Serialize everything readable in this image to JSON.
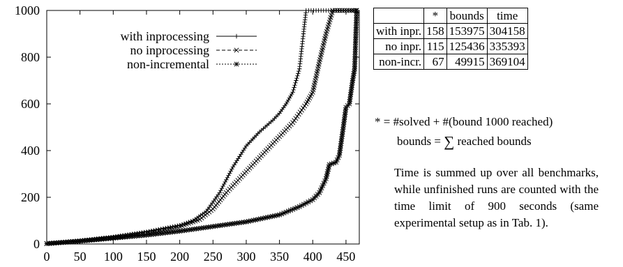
{
  "chart_data": {
    "type": "line",
    "title": "",
    "xlabel": "",
    "ylabel": "",
    "xlim": [
      0,
      470
    ],
    "ylim": [
      0,
      1000
    ],
    "xticks": [
      "0",
      "50",
      "100",
      "150",
      "200",
      "250",
      "300",
      "350",
      "400",
      "450"
    ],
    "yticks": [
      "0",
      "200",
      "400",
      "600",
      "800",
      "1000"
    ],
    "legend_position": "top-left",
    "series": [
      {
        "name": "with inprocessing",
        "marker": "+",
        "dash": "none",
        "points": [
          [
            0,
            2
          ],
          [
            50,
            14
          ],
          [
            100,
            30
          ],
          [
            150,
            52
          ],
          [
            200,
            80
          ],
          [
            220,
            100
          ],
          [
            240,
            140
          ],
          [
            260,
            220
          ],
          [
            280,
            330
          ],
          [
            300,
            420
          ],
          [
            320,
            480
          ],
          [
            340,
            530
          ],
          [
            350,
            560
          ],
          [
            360,
            600
          ],
          [
            370,
            650
          ],
          [
            380,
            750
          ],
          [
            386,
            900
          ],
          [
            390,
            1000
          ],
          [
            465,
            1000
          ]
        ]
      },
      {
        "name": "no inprocessing",
        "marker": "x",
        "dash": "dashed",
        "points": [
          [
            0,
            2
          ],
          [
            50,
            13
          ],
          [
            100,
            28
          ],
          [
            150,
            48
          ],
          [
            200,
            75
          ],
          [
            230,
            105
          ],
          [
            250,
            150
          ],
          [
            270,
            220
          ],
          [
            290,
            280
          ],
          [
            310,
            340
          ],
          [
            330,
            400
          ],
          [
            350,
            460
          ],
          [
            370,
            520
          ],
          [
            390,
            600
          ],
          [
            400,
            650
          ],
          [
            410,
            780
          ],
          [
            420,
            900
          ],
          [
            425,
            950
          ],
          [
            430,
            1000
          ],
          [
            465,
            1000
          ]
        ]
      },
      {
        "name": "non-incremental",
        "marker": "*",
        "dash": "dotted",
        "points": [
          [
            0,
            1
          ],
          [
            50,
            12
          ],
          [
            100,
            25
          ],
          [
            150,
            38
          ],
          [
            200,
            55
          ],
          [
            250,
            75
          ],
          [
            300,
            95
          ],
          [
            350,
            125
          ],
          [
            380,
            160
          ],
          [
            400,
            190
          ],
          [
            410,
            220
          ],
          [
            420,
            280
          ],
          [
            425,
            340
          ],
          [
            435,
            350
          ],
          [
            440,
            380
          ],
          [
            445,
            480
          ],
          [
            450,
            585
          ],
          [
            455,
            600
          ],
          [
            460,
            700
          ],
          [
            463,
            750
          ],
          [
            466,
            1000
          ]
        ]
      }
    ]
  },
  "table": {
    "header": [
      "",
      "*",
      "bounds",
      "time"
    ],
    "rows": [
      {
        "label": "with inpr.",
        "solved": "158",
        "bounds": "153975",
        "time": "304158"
      },
      {
        "label": "no inpr.",
        "solved": "115",
        "bounds": "125436",
        "time": "335393"
      },
      {
        "label": "non-incr.",
        "solved": "67",
        "bounds": "49915",
        "time": "369104"
      }
    ]
  },
  "notes": {
    "solved_def": "* = #solved + #(bound 1000 reached)",
    "bounds_left": "bounds =",
    "bounds_sigma": "∑",
    "bounds_right": "reached bounds",
    "paragraph": "Time is summed up over all benchmarks, while unfinished runs are counted with the time limit of 900 seconds (same experimental setup as in Tab. 1)."
  }
}
